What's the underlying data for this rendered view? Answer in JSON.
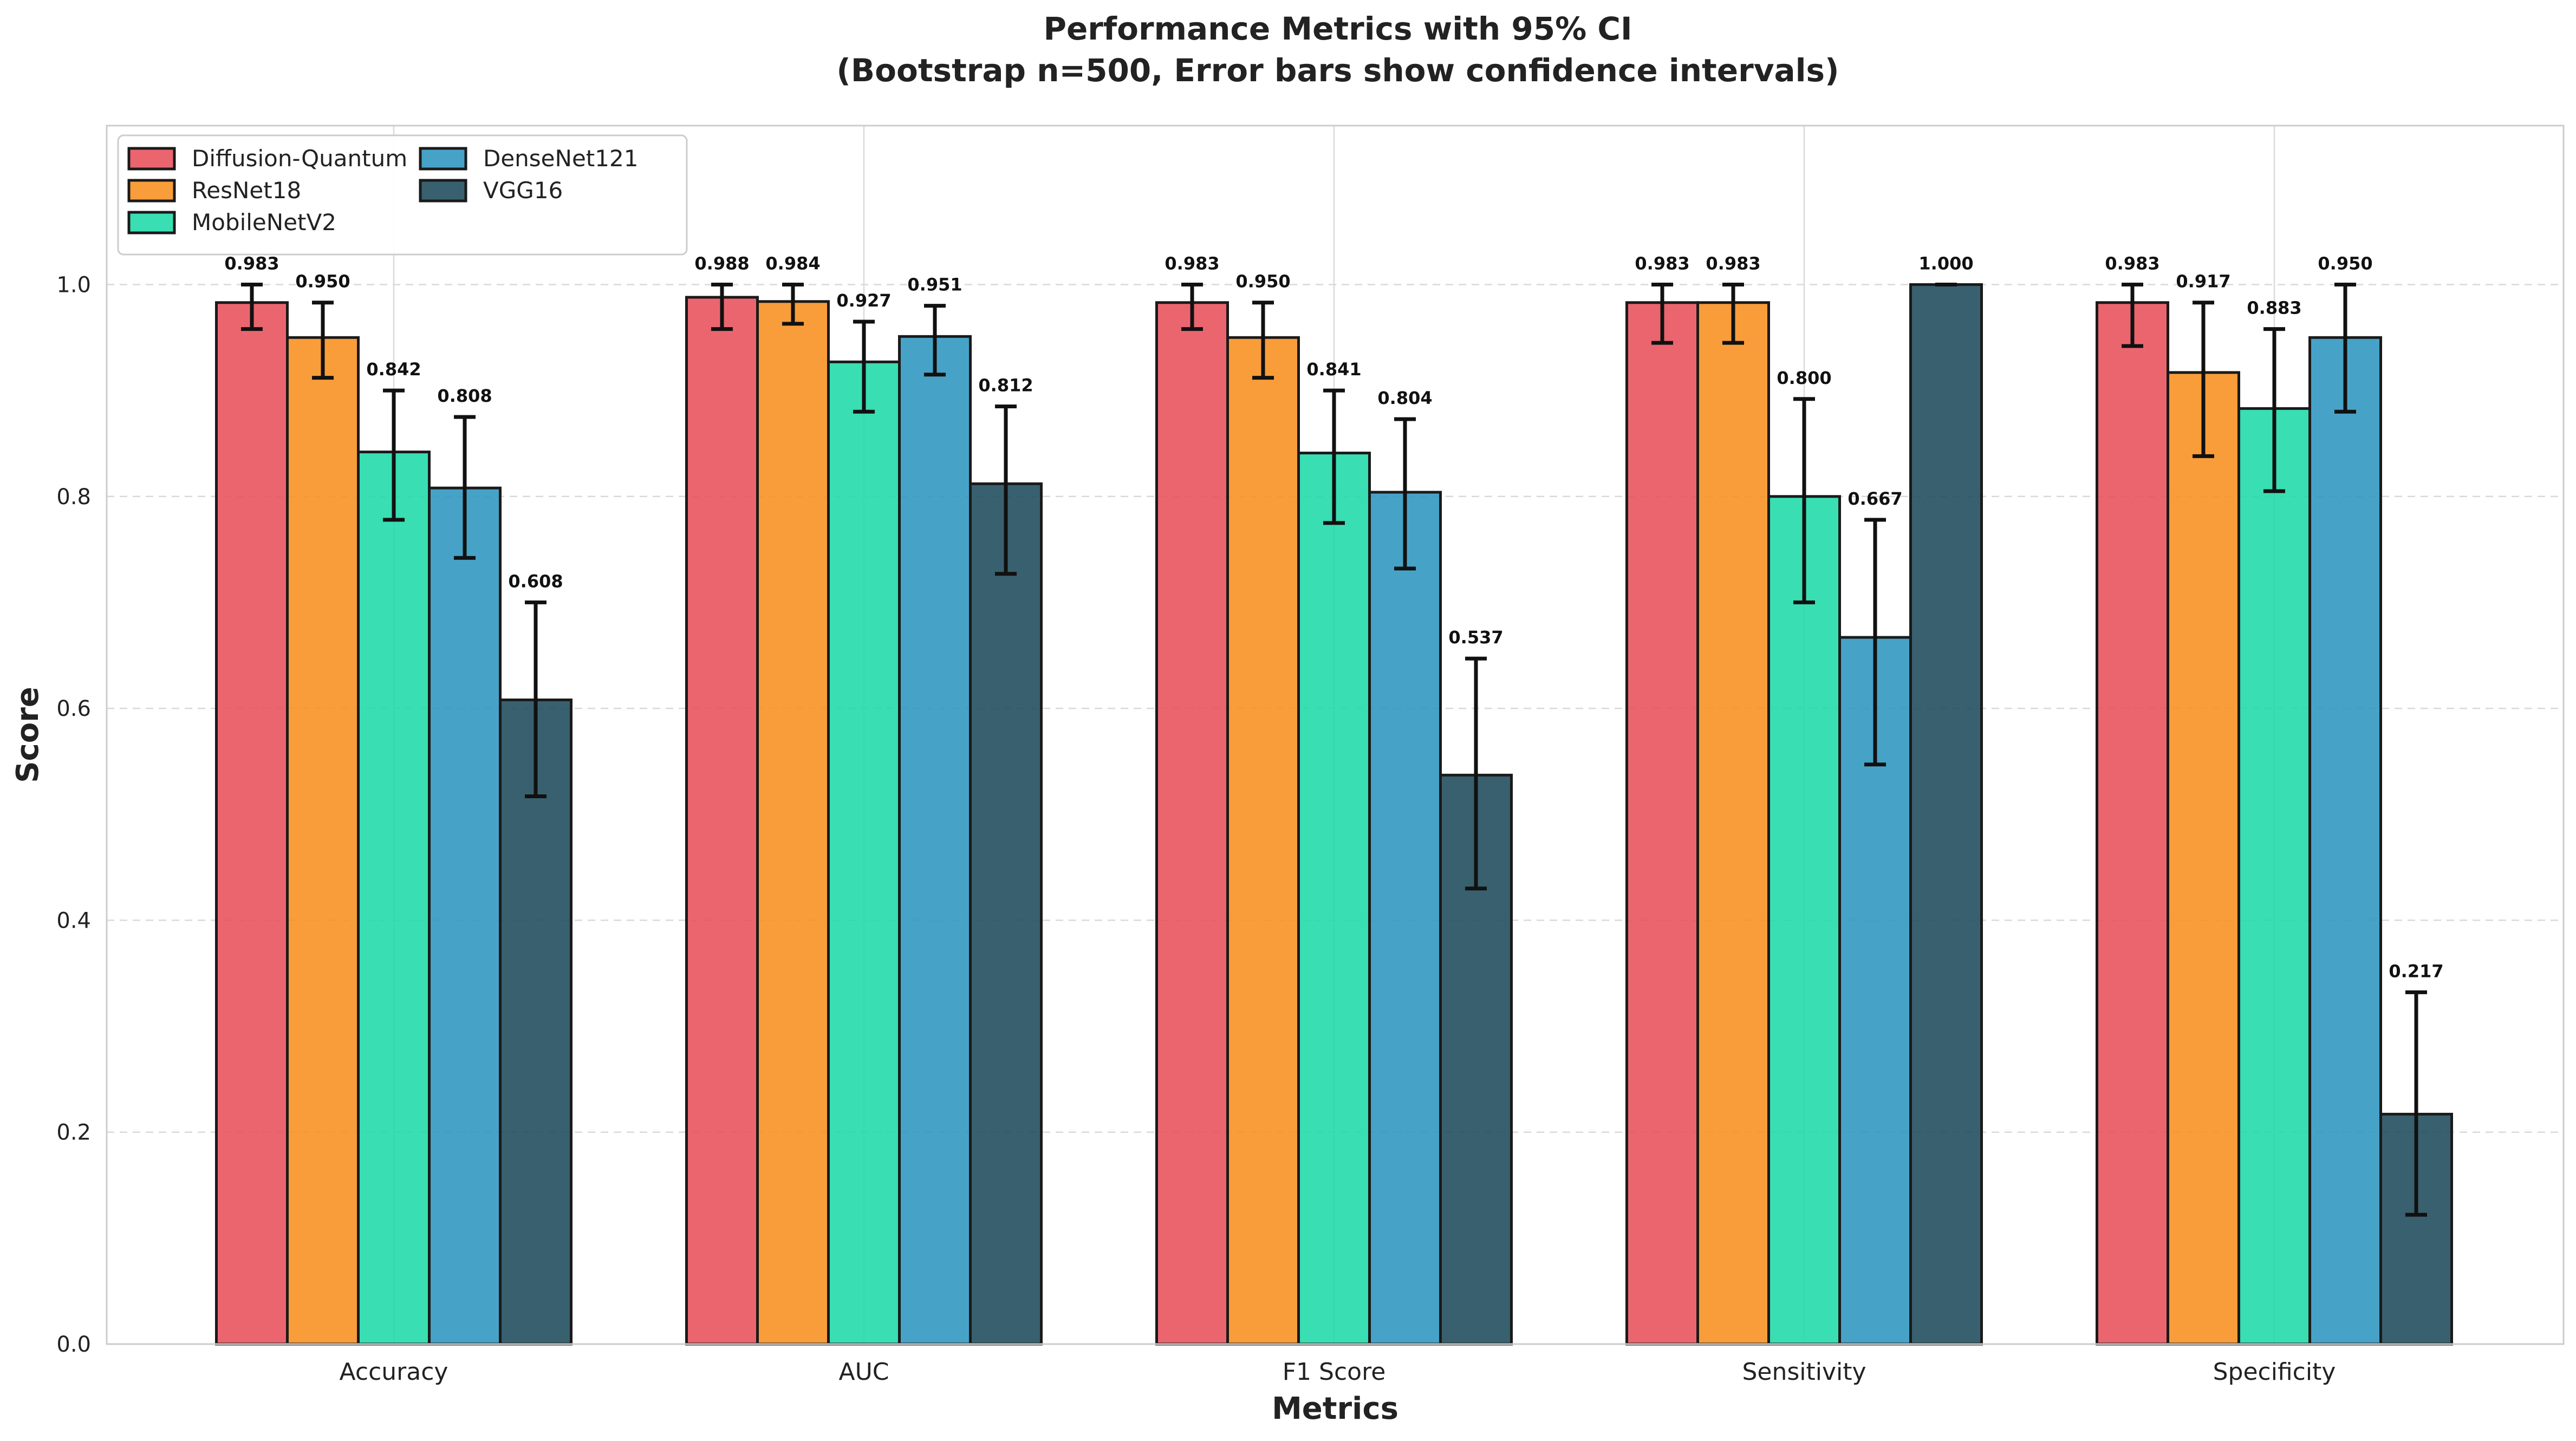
{
  "chart_data": {
    "type": "bar",
    "title": "Performance Metrics with 95% CI",
    "subtitle": "(Bootstrap n=500, Error bars show confidence intervals)",
    "xlabel": "Metrics",
    "ylabel": "Score",
    "ylim": [
      0,
      1.15
    ],
    "yticks": [
      "0.0",
      "0.2",
      "0.4",
      "0.6",
      "0.8",
      "1.0"
    ],
    "ytick_values": [
      0.0,
      0.2,
      0.4,
      0.6,
      0.8,
      1.0
    ],
    "grid": true,
    "legend_position": "top-left",
    "categories": [
      "Accuracy",
      "AUC",
      "F1 Score",
      "Sensitivity",
      "Specificity"
    ],
    "series": [
      {
        "name": "Diffusion-Quantum",
        "color": "#E8505B",
        "values": [
          0.983,
          0.988,
          0.983,
          0.983,
          0.983
        ],
        "labels": [
          "0.983",
          "0.988",
          "0.983",
          "0.983",
          "0.983"
        ],
        "ci_low": [
          0.958,
          0.958,
          0.958,
          0.945,
          0.942
        ],
        "ci_high": [
          1.0,
          1.0,
          1.0,
          1.0,
          1.0
        ]
      },
      {
        "name": "ResNet18",
        "color": "#F7901E",
        "values": [
          0.95,
          0.984,
          0.95,
          0.983,
          0.917
        ],
        "labels": [
          "0.950",
          "0.984",
          "0.950",
          "0.983",
          "0.917"
        ],
        "ci_low": [
          0.912,
          0.963,
          0.912,
          0.945,
          0.838
        ],
        "ci_high": [
          0.983,
          1.0,
          0.983,
          1.0,
          0.983
        ]
      },
      {
        "name": "MobileNetV2",
        "color": "#1ED9A8",
        "values": [
          0.842,
          0.927,
          0.841,
          0.8,
          0.883
        ],
        "labels": [
          "0.842",
          "0.927",
          "0.841",
          "0.800",
          "0.883"
        ],
        "ci_low": [
          0.778,
          0.88,
          0.775,
          0.7,
          0.805
        ],
        "ci_high": [
          0.9,
          0.965,
          0.9,
          0.892,
          0.958
        ]
      },
      {
        "name": "DenseNet121",
        "color": "#2E95BF",
        "values": [
          0.808,
          0.951,
          0.804,
          0.667,
          0.95
        ],
        "labels": [
          "0.808",
          "0.951",
          "0.804",
          "0.667",
          "0.950"
        ],
        "ci_low": [
          0.742,
          0.915,
          0.732,
          0.547,
          0.88
        ],
        "ci_high": [
          0.875,
          0.98,
          0.873,
          0.778,
          1.0
        ]
      },
      {
        "name": "VGG16",
        "color": "#1E4A5A",
        "values": [
          0.608,
          0.812,
          0.537,
          1.0,
          0.217
        ],
        "labels": [
          "0.608",
          "0.812",
          "0.537",
          "1.000",
          "0.217"
        ],
        "ci_low": [
          0.517,
          0.727,
          0.43,
          1.0,
          0.122
        ],
        "ci_high": [
          0.7,
          0.885,
          0.647,
          1.0,
          0.332
        ]
      }
    ]
  }
}
